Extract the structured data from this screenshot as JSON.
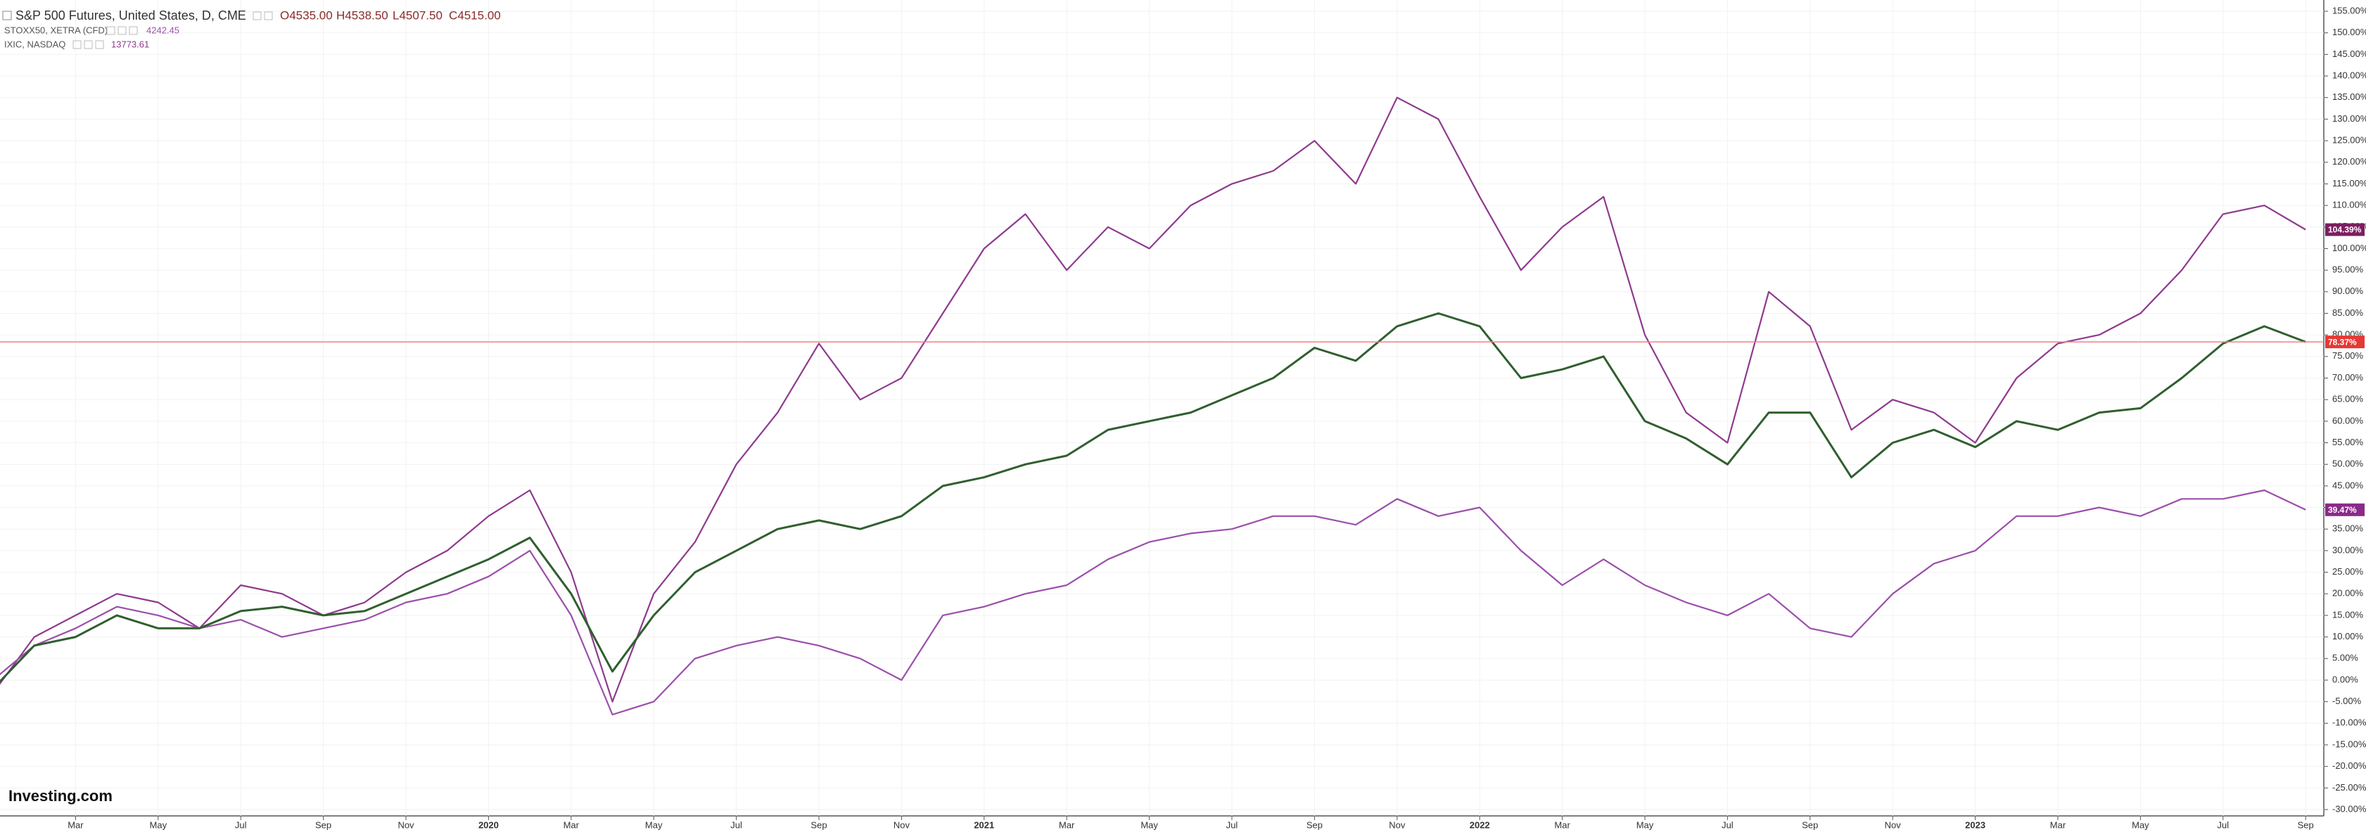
{
  "chart_data": {
    "type": "line",
    "logo": "Investing.com",
    "categories": [
      null,
      null,
      "Mar",
      null,
      "May",
      null,
      "Jul",
      null,
      "Sep",
      null,
      "Nov",
      null,
      "2020",
      null,
      "Mar",
      null,
      "May",
      null,
      "Jul",
      null,
      "Sep",
      null,
      "Nov",
      null,
      "2021",
      null,
      "Mar",
      null,
      "May",
      null,
      "Jul",
      null,
      "Sep",
      null,
      "Nov",
      null,
      "2022",
      null,
      "Mar",
      null,
      "May",
      null,
      "Jul",
      null,
      "Sep",
      null,
      "Nov",
      null,
      "2023",
      null,
      "Mar",
      null,
      "May",
      null,
      "Jul",
      null,
      "Sep"
    ],
    "series": [
      {
        "name": "S&P 500 Futures, United States, D, CME",
        "color": "#2f5f2f",
        "label_color": "#e53935",
        "ohlc": [
          "O4535.00",
          "H4538.50",
          "L4507.50",
          "C4515.00"
        ],
        "values": [
          -2,
          8,
          10,
          15,
          12,
          12,
          16,
          17,
          15,
          16,
          20,
          24,
          28,
          33,
          20,
          2,
          15,
          25,
          30,
          35,
          37,
          35,
          38,
          45,
          47,
          50,
          52,
          58,
          60,
          62,
          66,
          70,
          77,
          74,
          82,
          85,
          82,
          70,
          72,
          75,
          60,
          56,
          50,
          62,
          62,
          47,
          55,
          58,
          54,
          60,
          58,
          62,
          63,
          70,
          78,
          82,
          78.37
        ],
        "value_labels": [
          null,
          null,
          null,
          null,
          null,
          null,
          null,
          null,
          null,
          null,
          null,
          null,
          null,
          null,
          null,
          null,
          null,
          null,
          null,
          null,
          null,
          null,
          null,
          null,
          null,
          null,
          null,
          null,
          null,
          null,
          null,
          null,
          null,
          null,
          null,
          null,
          null,
          null,
          null,
          null,
          null,
          null,
          null,
          null,
          null,
          null,
          null,
          null,
          null,
          null,
          null,
          null,
          null,
          null,
          null,
          null,
          "78.37%"
        ]
      },
      {
        "name": "STOXX50, XETRA (CFD)",
        "color": "#9b4fab",
        "label_color": "#8a2a8a",
        "last_price": "4242.45",
        "values": [
          0,
          8,
          12,
          17,
          15,
          12,
          14,
          10,
          12,
          14,
          18,
          20,
          24,
          30,
          15,
          -8,
          -5,
          5,
          8,
          10,
          8,
          5,
          0,
          15,
          17,
          20,
          22,
          28,
          32,
          34,
          35,
          38,
          38,
          36,
          42,
          38,
          40,
          30,
          22,
          28,
          22,
          18,
          15,
          20,
          12,
          10,
          20,
          27,
          30,
          38,
          38,
          40,
          38,
          42,
          42,
          44,
          39.47
        ],
        "value_labels": [
          null,
          null,
          null,
          null,
          null,
          null,
          null,
          null,
          null,
          null,
          null,
          null,
          null,
          null,
          null,
          null,
          null,
          null,
          null,
          null,
          null,
          null,
          null,
          null,
          null,
          null,
          null,
          null,
          null,
          null,
          null,
          null,
          null,
          null,
          null,
          null,
          null,
          null,
          null,
          null,
          null,
          null,
          null,
          null,
          null,
          null,
          null,
          null,
          null,
          null,
          null,
          null,
          null,
          null,
          null,
          null,
          "39.47%"
        ]
      },
      {
        "name": "IXIC, NASDAQ",
        "color": "#8e3a8e",
        "label_color": "#7b1f5f",
        "last_price": "13773.61",
        "values": [
          -3,
          10,
          15,
          20,
          18,
          12,
          22,
          20,
          15,
          18,
          25,
          30,
          38,
          44,
          25,
          -5,
          20,
          32,
          50,
          62,
          78,
          65,
          70,
          85,
          100,
          108,
          95,
          105,
          100,
          110,
          115,
          118,
          125,
          115,
          135,
          130,
          112,
          95,
          105,
          112,
          80,
          62,
          55,
          90,
          82,
          58,
          65,
          62,
          55,
          70,
          78,
          80,
          85,
          95,
          108,
          110,
          104.39
        ],
        "value_labels": [
          null,
          null,
          null,
          null,
          null,
          null,
          null,
          null,
          null,
          null,
          null,
          null,
          null,
          null,
          null,
          null,
          null,
          null,
          null,
          null,
          null,
          null,
          null,
          null,
          null,
          null,
          null,
          null,
          null,
          null,
          null,
          null,
          null,
          null,
          null,
          null,
          null,
          null,
          null,
          null,
          null,
          null,
          null,
          null,
          null,
          null,
          null,
          null,
          null,
          null,
          null,
          null,
          null,
          null,
          null,
          null,
          "104.39%"
        ]
      }
    ],
    "ylim": [
      -30,
      155
    ],
    "yticks": [
      {
        "value": -30,
        "label": "-30.00%"
      },
      {
        "value": -25,
        "label": "-25.00%"
      },
      {
        "value": -20,
        "label": "-20.00%"
      },
      {
        "value": -15,
        "label": "-15.00%"
      },
      {
        "value": -10,
        "label": "-10.00%"
      },
      {
        "value": -5,
        "label": "-5.00%"
      },
      {
        "value": 0,
        "label": "0.00%"
      },
      {
        "value": 5,
        "label": "5.00%"
      },
      {
        "value": 10,
        "label": "10.00%"
      },
      {
        "value": 15,
        "label": "15.00%"
      },
      {
        "value": 20,
        "label": "20.00%"
      },
      {
        "value": 25,
        "label": "25.00%"
      },
      {
        "value": 30,
        "label": "30.00%"
      },
      {
        "value": 35,
        "label": "35.00%"
      },
      {
        "value": 40,
        "label": "40.00%"
      },
      {
        "value": 45,
        "label": "45.00%"
      },
      {
        "value": 50,
        "label": "50.00%"
      },
      {
        "value": 55,
        "label": "55.00%"
      },
      {
        "value": 60,
        "label": "60.00%"
      },
      {
        "value": 65,
        "label": "65.00%"
      },
      {
        "value": 70,
        "label": "70.00%"
      },
      {
        "value": 75,
        "label": "75.00%"
      },
      {
        "value": 80,
        "label": "80.00%"
      },
      {
        "value": 85,
        "label": "85.00%"
      },
      {
        "value": 90,
        "label": "90.00%"
      },
      {
        "value": 95,
        "label": "95.00%"
      },
      {
        "value": 100,
        "label": "100.00%"
      },
      {
        "value": 105,
        "label": "105.00%"
      },
      {
        "value": 110,
        "label": "110.00%"
      },
      {
        "value": 115,
        "label": "115.00%"
      },
      {
        "value": 120,
        "label": "120.00%"
      },
      {
        "value": 125,
        "label": "125.00%"
      },
      {
        "value": 130,
        "label": "130.00%"
      },
      {
        "value": 135,
        "label": "135.00%"
      },
      {
        "value": 140,
        "label": "140.00%"
      },
      {
        "value": 145,
        "label": "145.00%"
      },
      {
        "value": 150,
        "label": "150.00%"
      },
      {
        "value": 155,
        "label": "155.00%"
      }
    ],
    "grid": true
  }
}
